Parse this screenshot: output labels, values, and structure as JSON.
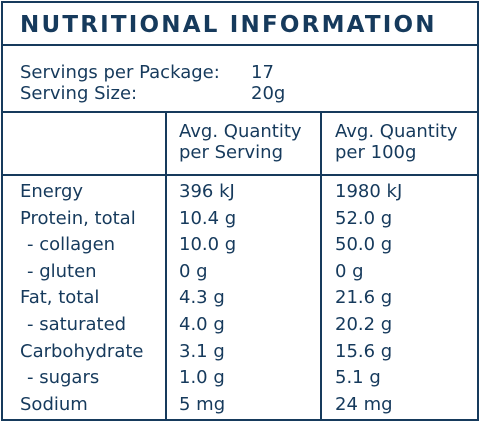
{
  "title": "NUTRITIONAL INFORMATION",
  "servings": {
    "per_package_label": "Servings per Package:",
    "per_package_value": "17",
    "size_label": "Serving Size:",
    "size_value": "20g"
  },
  "columns": {
    "per_serving_line1": "Avg. Quantity",
    "per_serving_line2": "per Serving",
    "per_100g_line1": "Avg. Quantity",
    "per_100g_line2": "per 100g"
  },
  "rows": [
    {
      "name": "Energy",
      "per_serving": "396 kJ",
      "per_100g": "1980 kJ"
    },
    {
      "name": "Protein, total",
      "per_serving": "10.4 g",
      "per_100g": "52.0 g"
    },
    {
      "name": " - collagen",
      "per_serving": "10.0 g",
      "per_100g": "50.0 g"
    },
    {
      "name": " - gluten",
      "per_serving": "0 g",
      "per_100g": "0 g"
    },
    {
      "name": "Fat, total",
      "per_serving": "4.3 g",
      "per_100g": "21.6 g"
    },
    {
      "name": " - saturated",
      "per_serving": "4.0 g",
      "per_100g": "20.2 g"
    },
    {
      "name": "Carbohydrate",
      "per_serving": "3.1 g",
      "per_100g": "15.6 g"
    },
    {
      "name": " - sugars",
      "per_serving": "1.0 g",
      "per_100g": "5.1 g"
    },
    {
      "name": "Sodium",
      "per_serving": "5 mg",
      "per_100g": "24 mg"
    }
  ],
  "colors": {
    "ink": "#163a5c",
    "background": "#ffffff"
  }
}
